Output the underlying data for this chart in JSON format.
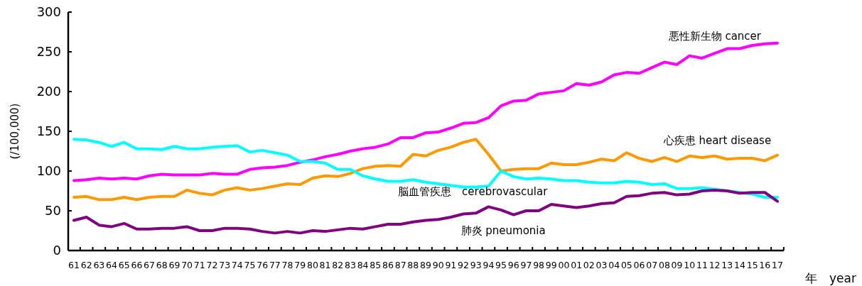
{
  "chart_data": {
    "type": "line",
    "ylabel": "(/100,000)",
    "xlabel": "年　year",
    "categories": [
      "61",
      "62",
      "63",
      "64",
      "65",
      "66",
      "67",
      "68",
      "69",
      "70",
      "71",
      "72",
      "73",
      "74",
      "75",
      "76",
      "77",
      "78",
      "79",
      "80",
      "81",
      "82",
      "83",
      "84",
      "85",
      "86",
      "87",
      "88",
      "89",
      "90",
      "91",
      "92",
      "93",
      "94",
      "95",
      "96",
      "97",
      "98",
      "99",
      "00",
      "01",
      "02",
      "03",
      "04",
      "05",
      "06",
      "07",
      "08",
      "09",
      "10",
      "11",
      "12",
      "13",
      "14",
      "15",
      "16",
      "17"
    ],
    "ylim": [
      0,
      300
    ],
    "yticks": [
      0,
      50,
      100,
      150,
      200,
      250,
      300
    ],
    "grid": false,
    "legend": false,
    "marker": "none",
    "line_style": "solid",
    "series": [
      {
        "name": "悪性新生物 cancer",
        "color": "#ff00ff",
        "values": [
          88,
          89,
          91,
          90,
          91,
          90,
          94,
          96,
          95,
          95,
          95,
          97,
          96,
          96,
          102,
          104,
          105,
          107,
          111,
          114,
          118,
          121,
          125,
          128,
          130,
          134,
          142,
          142,
          148,
          149,
          154,
          160,
          161,
          167,
          182,
          188,
          189,
          197,
          199,
          201,
          210,
          208,
          212,
          221,
          224,
          223,
          230,
          237,
          234,
          245,
          242,
          248,
          254,
          254,
          258,
          260,
          261
        ]
      },
      {
        "name": "心疾患 heart disease",
        "color": "#ff9900",
        "values": [
          67,
          68,
          64,
          64,
          67,
          64,
          67,
          68,
          68,
          76,
          72,
          70,
          76,
          79,
          76,
          78,
          81,
          84,
          83,
          91,
          94,
          93,
          97,
          103,
          106,
          107,
          106,
          121,
          119,
          126,
          130,
          136,
          140,
          121,
          100,
          102,
          103,
          103,
          110,
          108,
          108,
          111,
          115,
          113,
          123,
          116,
          112,
          117,
          112,
          119,
          117,
          119,
          115,
          116,
          116,
          113,
          120
        ]
      },
      {
        "name": "脳血管疾患　cerebrovascular",
        "color": "#00ffff",
        "values": [
          140,
          139,
          136,
          131,
          136,
          128,
          128,
          127,
          131,
          128,
          128,
          130,
          131,
          132,
          124,
          126,
          123,
          120,
          112,
          112,
          110,
          102,
          102,
          94,
          90,
          87,
          87,
          89,
          86,
          84,
          82,
          80,
          80,
          81,
          100,
          93,
          90,
          91,
          90,
          88,
          88,
          86,
          85,
          85,
          87,
          86,
          83,
          84,
          78,
          78,
          79,
          77,
          75,
          73,
          71,
          67,
          67
        ]
      },
      {
        "name": "肺炎 pneumonia",
        "color": "#800080",
        "values": [
          38,
          42,
          32,
          30,
          34,
          27,
          27,
          28,
          28,
          30,
          25,
          25,
          28,
          28,
          27,
          24,
          22,
          24,
          22,
          25,
          24,
          26,
          28,
          27,
          30,
          33,
          33,
          36,
          38,
          39,
          42,
          46,
          47,
          55,
          51,
          45,
          50,
          50,
          58,
          56,
          54,
          56,
          59,
          60,
          68,
          69,
          72,
          73,
          70,
          71,
          75,
          76,
          75,
          72,
          73,
          73,
          62
        ]
      }
    ]
  }
}
